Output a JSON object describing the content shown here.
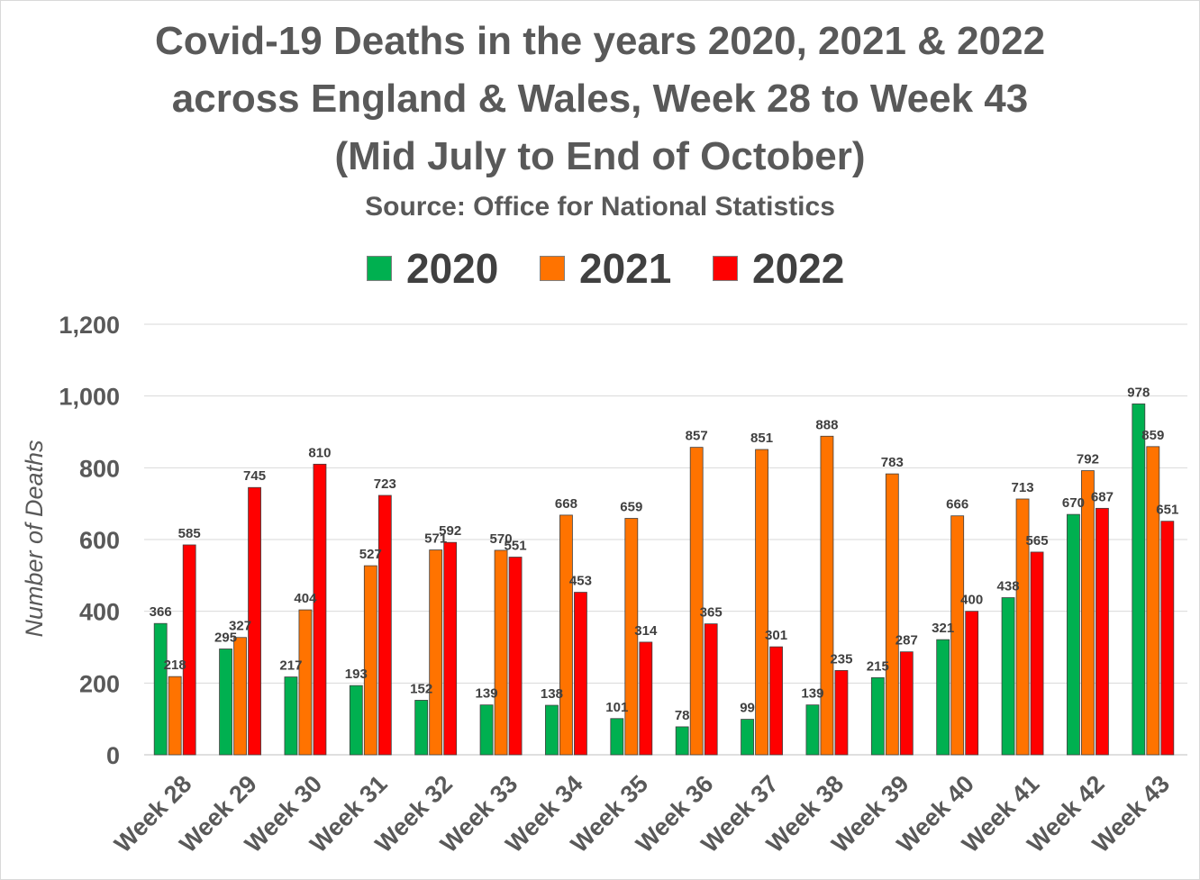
{
  "chart_data": {
    "type": "bar",
    "title_lines": [
      "Covid-19 Deaths in the years 2020, 2021 & 2022",
      "across  England & Wales, Week 28 to Week 43",
      "(Mid July to End of October)"
    ],
    "subtitle": "Source: Office for National Statistics",
    "xlabel": "",
    "ylabel": "Number of Deaths",
    "ylim": [
      0,
      1200
    ],
    "yticks": [
      0,
      200,
      400,
      600,
      800,
      1000,
      1200
    ],
    "ytick_labels": [
      "0",
      "200",
      "400",
      "600",
      "800",
      "1,000",
      "1,200"
    ],
    "grid": true,
    "legend_position": "top-center",
    "categories": [
      "Week 28",
      "Week 29",
      "Week 30",
      "Week 31",
      "Week 32",
      "Week 33",
      "Week 34",
      "Week 35",
      "Week 36",
      "Week 37",
      "Week 38",
      "Week 39",
      "Week 40",
      "Week 41",
      "Week 42",
      "Week 43"
    ],
    "series": [
      {
        "name": "2020",
        "color": "#00b050",
        "values": [
          366,
          295,
          217,
          193,
          152,
          139,
          138,
          101,
          78,
          99,
          139,
          215,
          321,
          438,
          670,
          978
        ]
      },
      {
        "name": "2021",
        "color": "#ff7300",
        "values": [
          218,
          327,
          404,
          527,
          571,
          570,
          668,
          659,
          857,
          851,
          888,
          783,
          666,
          713,
          792,
          859
        ]
      },
      {
        "name": "2022",
        "color": "#ff0000",
        "values": [
          585,
          745,
          810,
          723,
          592,
          551,
          453,
          314,
          365,
          301,
          235,
          287,
          400,
          565,
          687,
          651
        ]
      }
    ]
  }
}
